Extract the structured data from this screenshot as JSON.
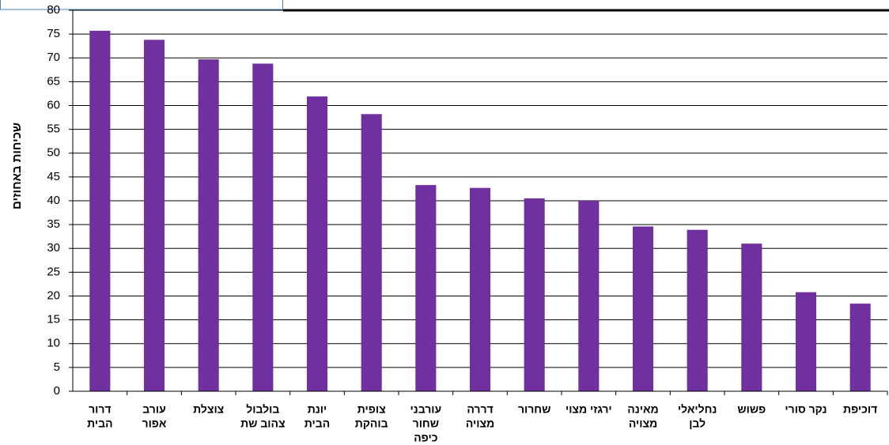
{
  "chart_data": {
    "type": "bar",
    "y_label": "שכיחות באחוזים",
    "categories": [
      [
        "דרור",
        "הבית"
      ],
      [
        "עורב",
        "אפור"
      ],
      [
        "צוצלת"
      ],
      [
        "בולבול",
        "צהוב שת"
      ],
      [
        "יונת",
        "הבית"
      ],
      [
        "צופית",
        "בוהקת"
      ],
      [
        "עורבני",
        "שחור",
        "כיפה"
      ],
      [
        "דררה",
        "מצויה"
      ],
      [
        "שחרור"
      ],
      [
        "ירגזי מצוי"
      ],
      [
        "מאינה",
        "מצויה"
      ],
      [
        "נחליאלי",
        "לבן"
      ],
      [
        "פשוש"
      ],
      [
        "נקר סורי"
      ],
      [
        "דוכיפת"
      ]
    ],
    "values": [
      75.7,
      73.8,
      69.7,
      68.8,
      61.9,
      58.2,
      43.3,
      42.7,
      40.5,
      40.0,
      34.6,
      33.9,
      31.0,
      20.8,
      18.4
    ],
    "color": "#7030a0",
    "ylim": [
      0,
      80
    ],
    "yticks": [
      0,
      5,
      10,
      15,
      20,
      25,
      30,
      35,
      40,
      45,
      50,
      55,
      60,
      65,
      70,
      75,
      80
    ],
    "grid": true
  }
}
